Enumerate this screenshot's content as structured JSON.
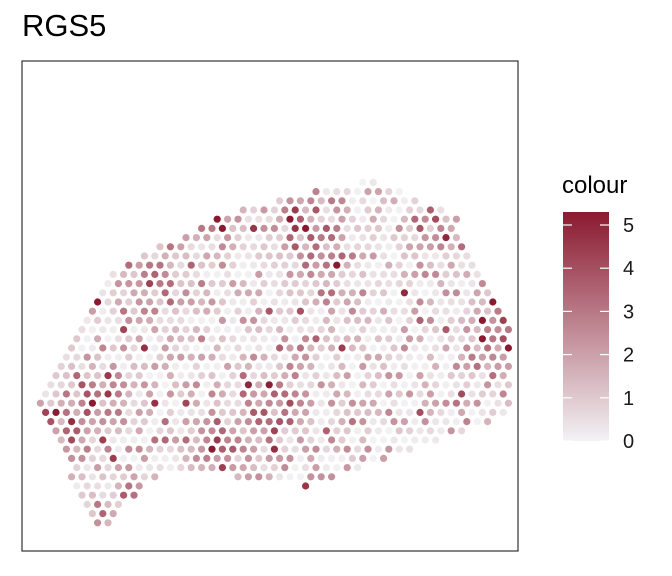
{
  "chart_data": {
    "type": "scatter",
    "title": "RGS5",
    "xlabel": "",
    "ylabel": "",
    "grid": false,
    "legend_position": "right",
    "colorbar": {
      "title": "colour",
      "min": 0,
      "max": 5.3,
      "ticks": [
        0,
        1,
        2,
        3,
        4,
        5
      ],
      "low_color": "#f2f2f4",
      "high_color": "#8b1a30"
    },
    "spot_region": {
      "boundary": [
        [
          0.29,
          0.83
        ],
        [
          0.58,
          0.87
        ],
        [
          0.99,
          0.72
        ],
        [
          0.99,
          0.55
        ],
        [
          0.87,
          0.31
        ],
        [
          0.7,
          0.24
        ],
        [
          0.41,
          0.31
        ],
        [
          0.16,
          0.44
        ],
        [
          0.03,
          0.69
        ],
        [
          0.15,
          0.97
        ],
        [
          0.29,
          0.83
        ]
      ],
      "hotspots": [
        {
          "x": 0.5,
          "y": 0.71,
          "value": 5.2
        },
        {
          "x": 0.4,
          "y": 0.79,
          "value": 4.4
        },
        {
          "x": 0.2,
          "y": 0.94,
          "value": 4.6
        },
        {
          "x": 0.14,
          "y": 0.7,
          "value": 4.3
        },
        {
          "x": 0.96,
          "y": 0.53,
          "value": 4.6
        },
        {
          "x": 0.99,
          "y": 0.6,
          "value": 4.2
        },
        {
          "x": 0.56,
          "y": 0.31,
          "value": 3.8
        },
        {
          "x": 0.26,
          "y": 0.45,
          "value": 4.0
        },
        {
          "x": 0.6,
          "y": 0.41,
          "value": 3.6
        },
        {
          "x": 0.07,
          "y": 0.77,
          "value": 3.4
        },
        {
          "x": 0.37,
          "y": 0.31,
          "value": 3.5
        },
        {
          "x": 0.88,
          "y": 0.33,
          "value": 3.2
        }
      ]
    }
  }
}
